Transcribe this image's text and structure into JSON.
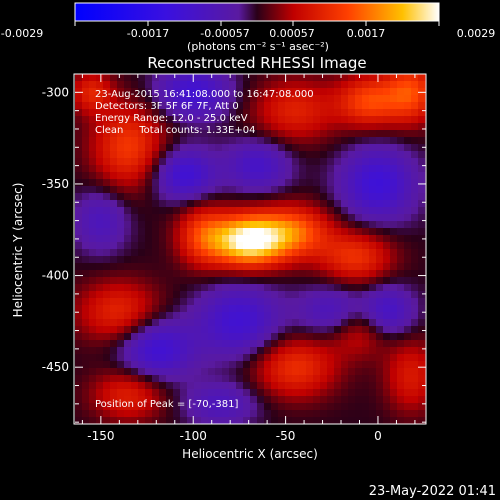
{
  "colorbar": {
    "ticks": [
      "-0.0029",
      "-0.0017",
      "-0.00057",
      "0.00057",
      "0.0017",
      "0.0029"
    ],
    "unit_label": "(photons cm⁻² s⁻¹ asec⁻²)"
  },
  "footer": {
    "timestamp": "23-May-2022 01:41"
  },
  "chart_data": {
    "type": "heatmap",
    "title": "Reconstructed RHESSI Image",
    "xlabel": "Heliocentric X (arcsec)",
    "ylabel": "Heliocentric Y (arcsec)",
    "xlim": [
      -164,
      26
    ],
    "ylim": [
      -481,
      -290
    ],
    "xticks": [
      -150,
      -100,
      -50,
      0
    ],
    "yticks": [
      -300,
      -350,
      -400,
      -450
    ],
    "colorbar_range": [
      -0.0029,
      0.0029
    ],
    "info": [
      "23-Aug-2015 16:41:08.000 to 16:47:08.000",
      "Detectors: 3F 5F 6F 7F, Att 0",
      "Energy Range: 12.0 - 25.0 keV",
      "Clean     Total counts: 1.33E+04"
    ],
    "peak_label": "Position of Peak = [-70,-381]",
    "peak": [
      -70,
      -381
    ],
    "sources": [
      {
        "x": -70,
        "y": -381,
        "sx": 14,
        "sy": 10,
        "a": 0.0029
      },
      {
        "x": -95,
        "y": -378,
        "sx": 10,
        "sy": 12,
        "a": 0.0012
      },
      {
        "x": -45,
        "y": -376,
        "sx": 14,
        "sy": 10,
        "a": 0.0015
      },
      {
        "x": -12,
        "y": -390,
        "sx": 14,
        "sy": 10,
        "a": 0.0012
      },
      {
        "x": -135,
        "y": -330,
        "sx": 14,
        "sy": 16,
        "a": 0.0013
      },
      {
        "x": -155,
        "y": -300,
        "sx": 8,
        "sy": 8,
        "a": 0.001
      },
      {
        "x": -45,
        "y": -310,
        "sx": 16,
        "sy": 12,
        "a": 0.001
      },
      {
        "x": -5,
        "y": -305,
        "sx": 12,
        "sy": 10,
        "a": 0.0014
      },
      {
        "x": 18,
        "y": -300,
        "sx": 10,
        "sy": 12,
        "a": 0.0014
      },
      {
        "x": -140,
        "y": -420,
        "sx": 16,
        "sy": 12,
        "a": 0.0011
      },
      {
        "x": -45,
        "y": -450,
        "sx": 16,
        "sy": 12,
        "a": 0.0012
      },
      {
        "x": 18,
        "y": -455,
        "sx": 10,
        "sy": 14,
        "a": 0.0009
      },
      {
        "x": -135,
        "y": -465,
        "sx": 14,
        "sy": 10,
        "a": 0.001
      },
      {
        "x": -10,
        "y": -430,
        "sx": 12,
        "sy": 10,
        "a": 0.0008
      },
      {
        "x": -100,
        "y": -300,
        "sx": 14,
        "sy": 10,
        "a": -0.0012
      },
      {
        "x": -105,
        "y": -345,
        "sx": 12,
        "sy": 10,
        "a": -0.0013
      },
      {
        "x": -65,
        "y": -340,
        "sx": 12,
        "sy": 10,
        "a": -0.001
      },
      {
        "x": 0,
        "y": -350,
        "sx": 14,
        "sy": 14,
        "a": -0.0013
      },
      {
        "x": -120,
        "y": -440,
        "sx": 14,
        "sy": 12,
        "a": -0.0013
      },
      {
        "x": -75,
        "y": -425,
        "sx": 16,
        "sy": 14,
        "a": -0.0012
      },
      {
        "x": -25,
        "y": -420,
        "sx": 12,
        "sy": 10,
        "a": -0.0009
      },
      {
        "x": 5,
        "y": -420,
        "sx": 10,
        "sy": 10,
        "a": -0.0011
      },
      {
        "x": -150,
        "y": -370,
        "sx": 10,
        "sy": 12,
        "a": -0.0008
      },
      {
        "x": -85,
        "y": -470,
        "sx": 14,
        "sy": 8,
        "a": -0.0008
      }
    ]
  }
}
